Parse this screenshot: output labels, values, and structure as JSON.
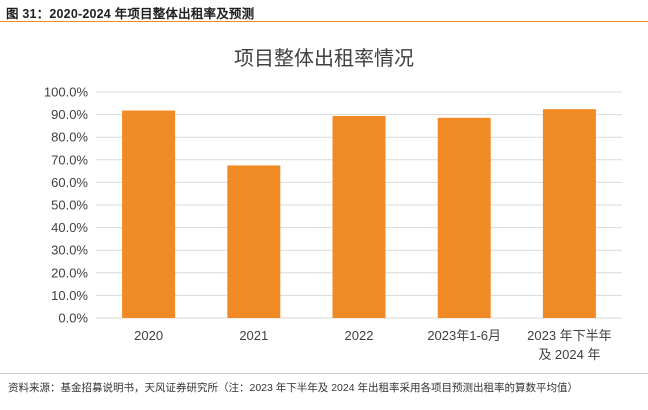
{
  "figure": {
    "header": "图 31：2020-2024 年项目整体出租率及预测",
    "source": "资料来源：基金招募说明书，天风证券研究所（注：2023 年下半年及 2024 年出租率采用各项目预测出租率的算数平均值）"
  },
  "colors": {
    "bar": "#f08a24",
    "grid": "#d9d9d9",
    "accent": "#f08a24"
  },
  "chart_data": {
    "type": "bar",
    "title": "项目整体出租率情况",
    "categories": [
      [
        "2020"
      ],
      [
        "2021"
      ],
      [
        "2022"
      ],
      [
        "2023年1-6月"
      ],
      [
        "2023 年下半年",
        "及 2024 年"
      ]
    ],
    "values": [
      91.8,
      67.5,
      89.4,
      88.6,
      92.4
    ],
    "yticks": [
      "0.0%",
      "10.0%",
      "20.0%",
      "30.0%",
      "40.0%",
      "50.0%",
      "60.0%",
      "70.0%",
      "80.0%",
      "90.0%",
      "100.0%"
    ],
    "ylim": [
      0,
      100
    ],
    "xlabel": "",
    "ylabel": "",
    "grid": true,
    "legend": "none"
  }
}
